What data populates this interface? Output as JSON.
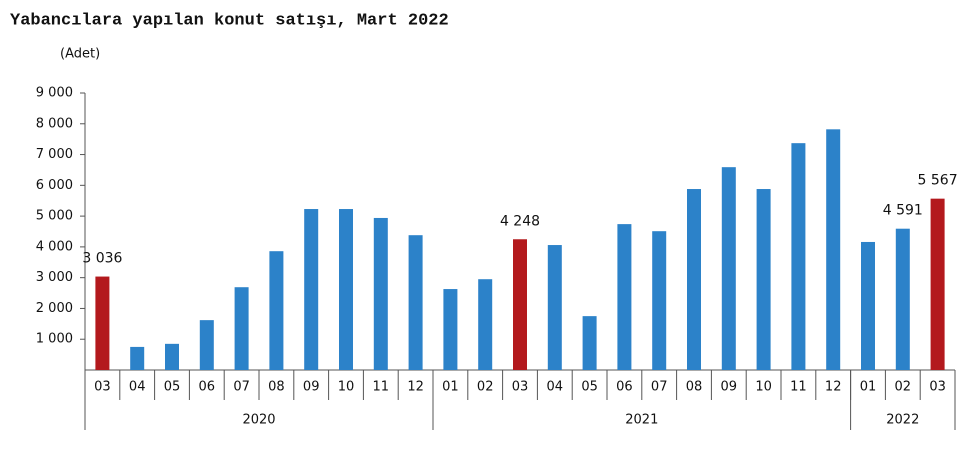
{
  "chart_data": {
    "type": "bar",
    "title": "Yabancılara yapılan konut satışı, Mart 2022",
    "y_label": "(Adet)",
    "ylim": [
      0,
      9000
    ],
    "yticks": [
      {
        "value": 1000,
        "label": "1 000"
      },
      {
        "value": 2000,
        "label": "2 000"
      },
      {
        "value": 3000,
        "label": "3 000"
      },
      {
        "value": 4000,
        "label": "4 000"
      },
      {
        "value": 5000,
        "label": "5 000"
      },
      {
        "value": 6000,
        "label": "6 000"
      },
      {
        "value": 7000,
        "label": "7 000"
      },
      {
        "value": 8000,
        "label": "8 000"
      },
      {
        "value": 9000,
        "label": "9 000"
      }
    ],
    "groups": [
      {
        "name": "2020",
        "categories": [
          "03",
          "04",
          "05",
          "06",
          "07",
          "08",
          "09",
          "10",
          "11",
          "12"
        ],
        "values": [
          3036,
          750,
          850,
          1620,
          2690,
          3860,
          5230,
          5230,
          4940,
          4380
        ],
        "value_labels": [
          "3 036",
          null,
          null,
          null,
          null,
          null,
          null,
          null,
          null,
          null
        ],
        "colors": [
          "#b3191d",
          "#2c82c9",
          "#2c82c9",
          "#2c82c9",
          "#2c82c9",
          "#2c82c9",
          "#2c82c9",
          "#2c82c9",
          "#2c82c9",
          "#2c82c9"
        ]
      },
      {
        "name": "2021",
        "categories": [
          "01",
          "02",
          "03",
          "04",
          "05",
          "06",
          "07",
          "08",
          "09",
          "10",
          "11",
          "12"
        ],
        "values": [
          2630,
          2950,
          4248,
          4060,
          1750,
          4740,
          4510,
          5880,
          6590,
          5880,
          7370,
          7820
        ],
        "value_labels": [
          null,
          null,
          "4 248",
          null,
          null,
          null,
          null,
          null,
          null,
          null,
          null,
          null
        ],
        "colors": [
          "#2c82c9",
          "#2c82c9",
          "#b3191d",
          "#2c82c9",
          "#2c82c9",
          "#2c82c9",
          "#2c82c9",
          "#2c82c9",
          "#2c82c9",
          "#2c82c9",
          "#2c82c9",
          "#2c82c9"
        ]
      },
      {
        "name": "2022",
        "categories": [
          "01",
          "02",
          "03"
        ],
        "values": [
          4160,
          4591,
          5567
        ],
        "value_labels": [
          null,
          "4 591",
          "5 567"
        ],
        "colors": [
          "#2c82c9",
          "#2c82c9",
          "#b3191d"
        ]
      }
    ]
  }
}
